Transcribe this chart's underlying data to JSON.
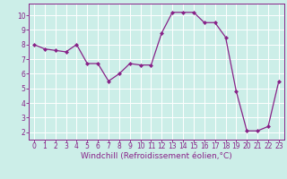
{
  "x": [
    0,
    1,
    2,
    3,
    4,
    5,
    6,
    7,
    8,
    9,
    10,
    11,
    12,
    13,
    14,
    15,
    16,
    17,
    18,
    19,
    20,
    21,
    22,
    23
  ],
  "y": [
    8.0,
    7.7,
    7.6,
    7.5,
    8.0,
    6.7,
    6.7,
    5.5,
    6.0,
    6.7,
    6.6,
    6.6,
    8.8,
    10.2,
    10.2,
    10.2,
    9.5,
    9.5,
    8.5,
    4.8,
    2.1,
    2.1,
    2.4,
    5.5
  ],
  "line_color": "#882288",
  "marker": "D",
  "marker_size": 2,
  "bg_color": "#cceee8",
  "grid_color": "#ffffff",
  "xlabel": "Windchill (Refroidissement éolien,°C)",
  "xlim": [
    -0.5,
    23.5
  ],
  "ylim": [
    1.5,
    10.8
  ],
  "yticks": [
    2,
    3,
    4,
    5,
    6,
    7,
    8,
    9,
    10
  ],
  "xticks": [
    0,
    1,
    2,
    3,
    4,
    5,
    6,
    7,
    8,
    9,
    10,
    11,
    12,
    13,
    14,
    15,
    16,
    17,
    18,
    19,
    20,
    21,
    22,
    23
  ],
  "axis_label_fontsize": 6.5,
  "tick_fontsize": 5.5
}
